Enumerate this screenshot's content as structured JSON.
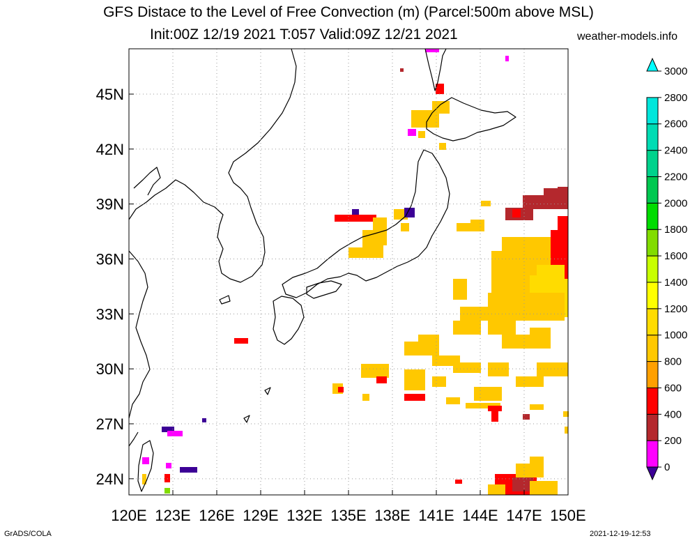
{
  "title": "GFS Distace to the Level of Free Convection (m) (Parcel:500m above MSL)",
  "subtitle": "Init:00Z 12/19 2021 T:057 Valid:09Z 12/21 2021",
  "site": "weather-models.info",
  "footer_left": "GrADS/COLA",
  "footer_right": "2021-12-19-12:53",
  "lon_labels": [
    "120E",
    "123E",
    "126E",
    "129E",
    "132E",
    "135E",
    "138E",
    "141E",
    "144E",
    "147E",
    "150E"
  ],
  "lat_labels": [
    "24N",
    "27N",
    "30N",
    "33N",
    "36N",
    "39N",
    "42N",
    "45N"
  ],
  "colorbar": {
    "labels": [
      "0",
      "200",
      "400",
      "600",
      "800",
      "1000",
      "1200",
      "1400",
      "1600",
      "1800",
      "2000",
      "2200",
      "2400",
      "2600",
      "2800",
      "3000"
    ],
    "colors": [
      "#3c0096",
      "#ff00ff",
      "#b4282d",
      "#ff0000",
      "#ffa000",
      "#ffc800",
      "#ffdc00",
      "#ffff00",
      "#c8ff00",
      "#82dc00",
      "#00dc00",
      "#00c850",
      "#00d28c",
      "#00dcb4",
      "#00e6dc",
      "#00ffff"
    ]
  }
}
